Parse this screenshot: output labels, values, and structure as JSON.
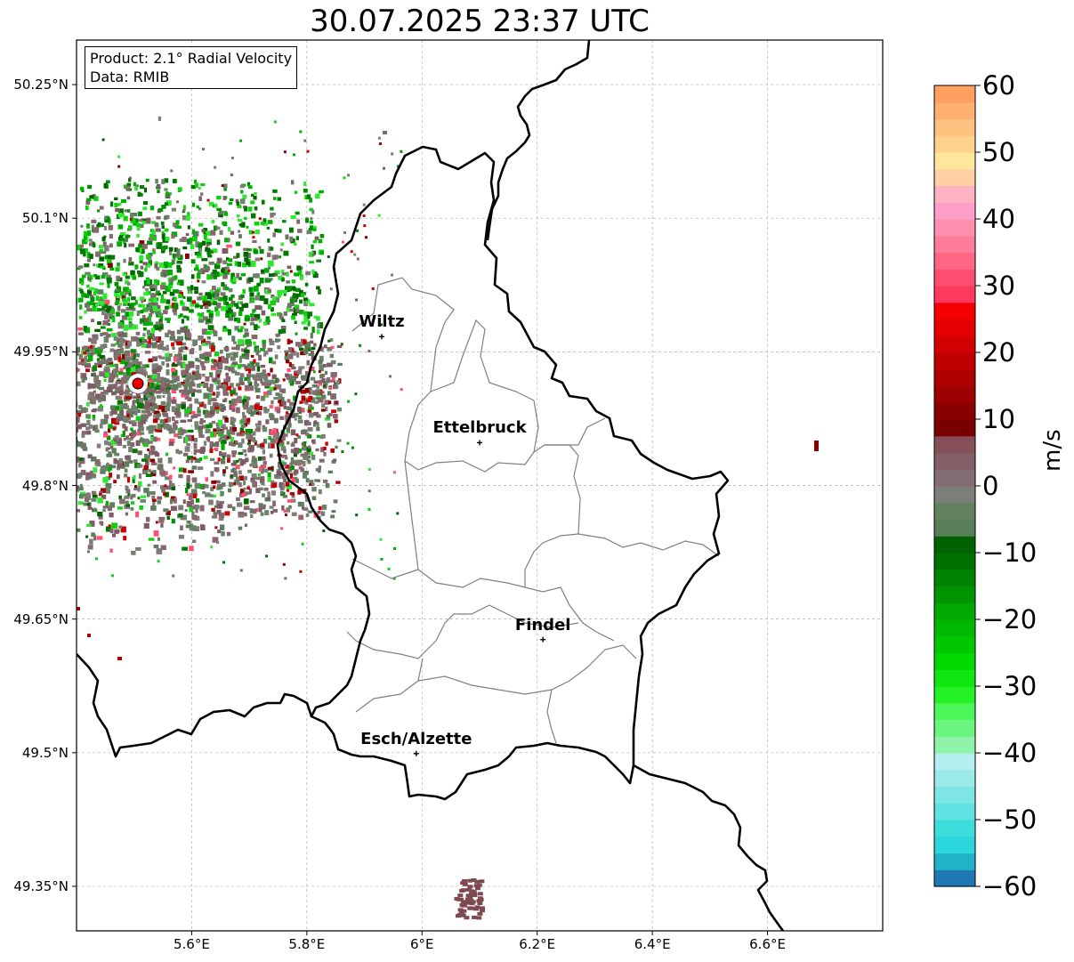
{
  "title": "30.07.2025 23:37 UTC",
  "info_box": {
    "product": "Product: 2.1° Radial Velocity",
    "source": "Data: RMIB"
  },
  "axes": {
    "lon_ticks": [
      {
        "label": "5.6°E",
        "value": 5.6
      },
      {
        "label": "5.8°E",
        "value": 5.8
      },
      {
        "label": "6°E",
        "value": 6.0
      },
      {
        "label": "6.2°E",
        "value": 6.2
      },
      {
        "label": "6.4°E",
        "value": 6.4
      },
      {
        "label": "6.6°E",
        "value": 6.6
      }
    ],
    "lat_ticks": [
      {
        "label": "50.25°N",
        "value": 50.25
      },
      {
        "label": "50.1°N",
        "value": 50.1
      },
      {
        "label": "49.95°N",
        "value": 49.95
      },
      {
        "label": "49.8°N",
        "value": 49.8
      },
      {
        "label": "49.65°N",
        "value": 49.65
      },
      {
        "label": "49.5°N",
        "value": 49.5
      },
      {
        "label": "49.35°N",
        "value": 49.35
      }
    ],
    "lon_range": [
      5.4,
      6.8
    ],
    "lat_range": [
      49.3,
      50.3
    ],
    "grid": true
  },
  "cities": [
    {
      "name": "Wiltz",
      "lon": 5.93,
      "lat": 49.967
    },
    {
      "name": "Ettelbruck",
      "lon": 6.1,
      "lat": 49.848
    },
    {
      "name": "Findel",
      "lon": 6.21,
      "lat": 49.627
    },
    {
      "name": "Esch/Alzette",
      "lon": 5.99,
      "lat": 49.499
    }
  ],
  "radar_site": {
    "lon": 5.506,
    "lat": 49.915
  },
  "colorbar": {
    "label": "m/s",
    "min": -60,
    "max": 60,
    "ticks": [
      {
        "label": "60",
        "value": 60
      },
      {
        "label": "50",
        "value": 50
      },
      {
        "label": "40",
        "value": 40
      },
      {
        "label": "30",
        "value": 30
      },
      {
        "label": "20",
        "value": 20
      },
      {
        "label": "10",
        "value": 10
      },
      {
        "label": "0",
        "value": 0
      },
      {
        "label": "−10",
        "value": -10
      },
      {
        "label": "−20",
        "value": -20
      },
      {
        "label": "−30",
        "value": -30
      },
      {
        "label": "−40",
        "value": -40
      },
      {
        "label": "−50",
        "value": -50
      },
      {
        "label": "−60",
        "value": -60
      }
    ],
    "colors": [
      "#1f78b4",
      "#21b2c8",
      "#2ad6dc",
      "#3fdcdc",
      "#5fe2e0",
      "#7de6e4",
      "#9aeaea",
      "#b4eef0",
      "#8ff3a9",
      "#6bf57e",
      "#4cf75a",
      "#24f225",
      "#10e610",
      "#00d800",
      "#00c800",
      "#00b800",
      "#00a800",
      "#009400",
      "#008400",
      "#007000",
      "#006200",
      "#5a7d5a",
      "#64825f",
      "#7e7e78",
      "#826e73",
      "#845f67",
      "#86505a",
      "#7a0000",
      "#8a0000",
      "#9c0000",
      "#ae0000",
      "#c00000",
      "#d20000",
      "#e40000",
      "#f50000",
      "#ff3860",
      "#ff4f70",
      "#ff6684",
      "#ff7d98",
      "#ff90b0",
      "#ff9ec8",
      "#ffb2c4",
      "#ffd0a4",
      "#ffe69a",
      "#ffd28c",
      "#ffc27e",
      "#ffb070",
      "#ffa060"
    ]
  },
  "colors": {
    "border_national": "#000000",
    "border_cantonal": "#808080",
    "grid": "#b0b0b0",
    "radar_site": "#ee0000"
  }
}
